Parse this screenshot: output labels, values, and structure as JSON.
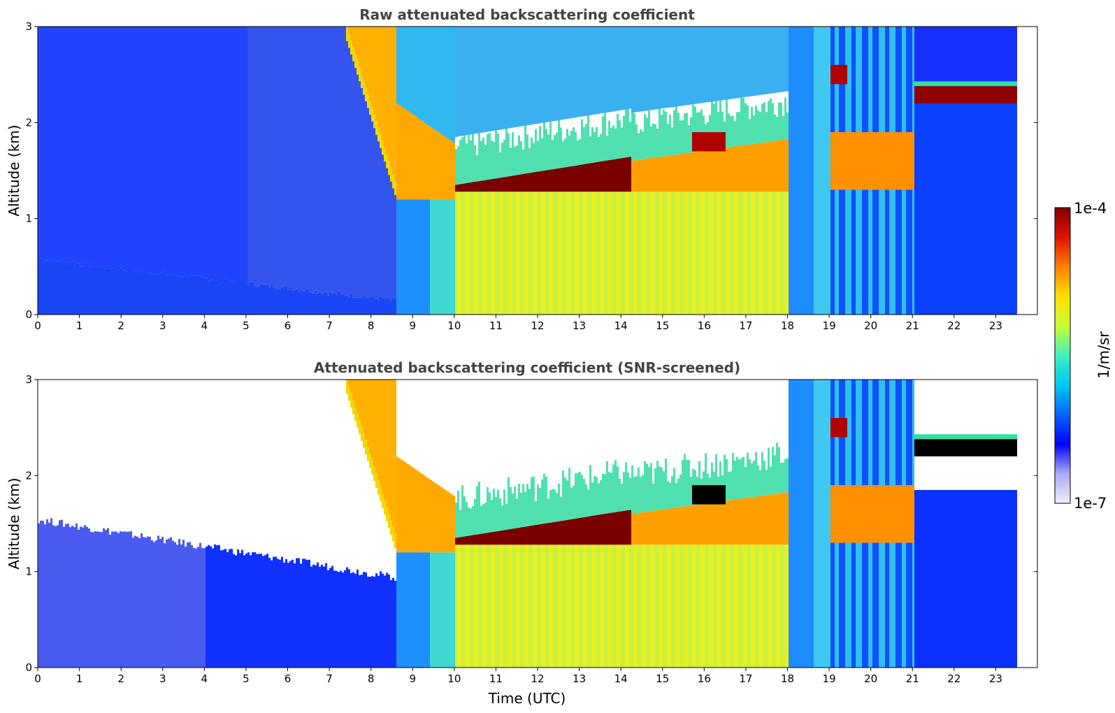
{
  "chart_data": [
    {
      "type": "heatmap",
      "title": "Raw attenuated backscattering coefficient",
      "xlabel": "",
      "ylabel": "Altitude (km)",
      "xlim": [
        0,
        24
      ],
      "ylim": [
        0,
        3
      ],
      "xticks": [
        "0",
        "1",
        "2",
        "3",
        "4",
        "5",
        "6",
        "7",
        "8",
        "9",
        "10",
        "11",
        "12",
        "13",
        "14",
        "15",
        "16",
        "17",
        "18",
        "19",
        "20",
        "21",
        "22",
        "23"
      ],
      "yticks": [
        "0",
        "1",
        "2",
        "3"
      ],
      "data_end_hour": 23.5,
      "snr_screened": false,
      "features": [
        {
          "kind": "surface-aerosol",
          "x": [
            0,
            8.6
          ],
          "top_km": [
            0.55,
            0.55,
            0.4,
            0.2,
            0.15
          ]
        },
        {
          "kind": "inclined-cloud-layer",
          "x_top": [
            7.5,
            8.7
          ],
          "x_bottom": [
            8.5,
            9.3
          ],
          "y": [
            1.2,
            3.0
          ]
        },
        {
          "kind": "stratocumulus-base",
          "x": [
            10.0,
            14.2
          ],
          "base_km": 1.28,
          "top_km": [
            1.3,
            1.6
          ]
        },
        {
          "kind": "stratocumulus-base",
          "x": [
            14.2,
            18.0
          ],
          "base_km": 1.28,
          "top_km": [
            1.6,
            1.85
          ]
        },
        {
          "kind": "cloud-layer",
          "x": [
            15.7,
            16.5
          ],
          "y": [
            1.7,
            1.9
          ]
        },
        {
          "kind": "broken-cloud",
          "x": [
            19.0,
            21.0
          ],
          "y": [
            1.3,
            2.5
          ]
        },
        {
          "kind": "elevated-cloud-layer",
          "x": [
            21.0,
            23.5
          ],
          "y": [
            2.2,
            2.4
          ]
        }
      ]
    },
    {
      "type": "heatmap",
      "title": "Attenuated backscattering coefficient (SNR-screened)",
      "xlabel": "Time (UTC)",
      "ylabel": "Altitude (km)",
      "xlim": [
        0,
        24
      ],
      "ylim": [
        0,
        3
      ],
      "xticks": [
        "0",
        "1",
        "2",
        "3",
        "4",
        "5",
        "6",
        "7",
        "8",
        "9",
        "10",
        "11",
        "12",
        "13",
        "14",
        "15",
        "16",
        "17",
        "18",
        "19",
        "20",
        "21",
        "22",
        "23"
      ],
      "yticks": [
        "0",
        "1",
        "2",
        "3"
      ],
      "data_end_hour": 23.5,
      "snr_screened": true,
      "features": [
        {
          "kind": "surface-aerosol",
          "x": [
            0,
            9.0
          ],
          "top_km": [
            1.6,
            1.5,
            1.3,
            1.1,
            1.0,
            0.95
          ]
        },
        {
          "kind": "inclined-cloud-layer",
          "x_top": [
            7.5,
            8.7
          ],
          "x_bottom": [
            8.5,
            9.3
          ],
          "y": [
            1.2,
            3.0
          ]
        },
        {
          "kind": "stratocumulus-base",
          "x": [
            10.0,
            14.2
          ],
          "base_km": 1.28,
          "top_km": [
            1.3,
            1.6
          ]
        },
        {
          "kind": "stratocumulus-base",
          "x": [
            14.2,
            18.0
          ],
          "base_km": 1.28,
          "top_km": [
            1.6,
            1.85
          ]
        },
        {
          "kind": "cloud-layer",
          "x": [
            15.7,
            16.5
          ],
          "y": [
            1.7,
            1.9
          ]
        },
        {
          "kind": "broken-cloud",
          "x": [
            19.0,
            21.0
          ],
          "y": [
            1.3,
            2.5
          ]
        },
        {
          "kind": "elevated-cloud-layer",
          "x": [
            21.0,
            23.5
          ],
          "y": [
            2.2,
            2.4
          ]
        }
      ]
    }
  ],
  "colorbar": {
    "label": "1/m/sr",
    "max_label": "1e-4",
    "min_label": "1e-7",
    "scale": "log",
    "colormap": [
      "#f0f0ff",
      "#aaaaf5",
      "#0000ff",
      "#0066ff",
      "#00c8f0",
      "#40f0c0",
      "#c8ff30",
      "#ffe000",
      "#ff8000",
      "#e01000",
      "#800000"
    ]
  }
}
